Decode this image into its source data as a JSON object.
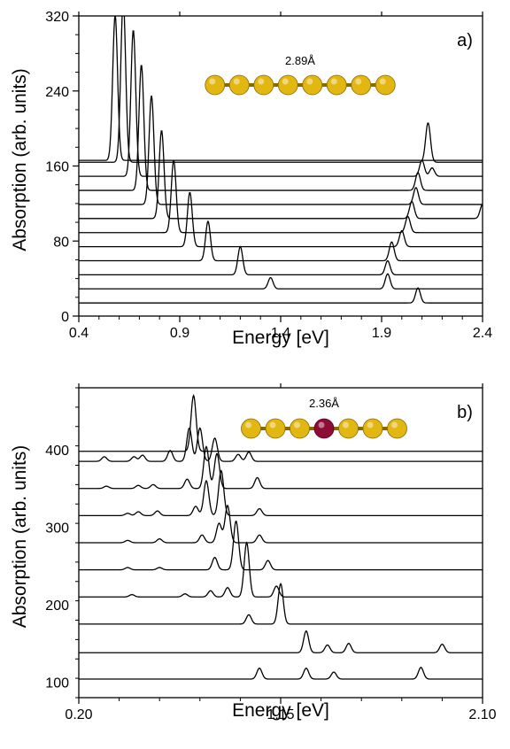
{
  "colors": {
    "gold": "#e3b711",
    "gold_dark": "#8a6a00",
    "dopant": "#8e0b35",
    "line": "#000000"
  },
  "chart_data": [
    {
      "type": "line",
      "panel_label": "a)",
      "annotation": "2.89Å",
      "xlabel": "Energy [eV]",
      "ylabel": "Absorption (arb. units)",
      "xlim": [
        0.4,
        2.4
      ],
      "ylim": [
        0,
        320
      ],
      "xticks": [
        0.4,
        0.9,
        1.4,
        1.9,
        2.4
      ],
      "yticks": [
        0,
        80,
        160,
        240,
        320
      ],
      "x_tick_labels": [
        "0.4",
        "0.9",
        "1.4",
        "1.9",
        "2.4"
      ],
      "y_tick_labels": [
        "0",
        "80",
        "160",
        "240",
        "320"
      ],
      "atoms": [
        {
          "type": "Au"
        },
        {
          "type": "Au"
        },
        {
          "type": "Au"
        },
        {
          "type": "Au"
        },
        {
          "type": "Au"
        },
        {
          "type": "Au"
        },
        {
          "type": "Au"
        },
        {
          "type": "Au"
        }
      ],
      "peak_width": 0.012,
      "series": [
        {
          "baseline": 14,
          "peaks": [
            [
              2.08,
              16
            ]
          ]
        },
        {
          "baseline": 29,
          "peaks": [
            [
              1.35,
              12
            ],
            [
              1.93,
              16
            ]
          ]
        },
        {
          "baseline": 44,
          "peaks": [
            [
              1.2,
              30
            ],
            [
              1.93,
              15
            ]
          ]
        },
        {
          "baseline": 59,
          "peaks": [
            [
              1.04,
              42
            ],
            [
              1.95,
              20
            ]
          ]
        },
        {
          "baseline": 74,
          "peaks": [
            [
              0.95,
              58
            ],
            [
              2.0,
              17
            ]
          ]
        },
        {
          "baseline": 89,
          "peaks": [
            [
              0.87,
              77
            ],
            [
              2.03,
              17
            ]
          ]
        },
        {
          "baseline": 104,
          "peaks": [
            [
              0.81,
              94
            ],
            [
              2.05,
              18
            ],
            [
              2.4,
              15
            ]
          ]
        },
        {
          "baseline": 119,
          "peaks": [
            [
              0.76,
              116
            ],
            [
              2.07,
              18
            ]
          ]
        },
        {
          "baseline": 134,
          "peaks": [
            [
              0.71,
              134
            ],
            [
              2.08,
              19
            ]
          ]
        },
        {
          "baseline": 149,
          "peaks": [
            [
              0.67,
              156
            ],
            [
              2.1,
              17
            ],
            [
              2.15,
              9
            ]
          ]
        },
        {
          "baseline": 164,
          "peaks": [
            [
              0.62,
              173
            ],
            [
              2.13,
              42
            ]
          ]
        },
        {
          "baseline": 166,
          "peaks": [
            [
              0.58,
              155
            ]
          ]
        }
      ]
    },
    {
      "type": "line",
      "panel_label": "b)",
      "annotation": "2.36Å",
      "xlabel": "Energy [eV]",
      "ylabel": "Absorption (arb. units)",
      "xlim": [
        0.2,
        2.1
      ],
      "ylim": [
        80,
        480
      ],
      "xticks": [
        0.2,
        1.15,
        2.1
      ],
      "yticks": [
        100,
        200,
        300,
        400
      ],
      "x_tick_labels": [
        "0.20",
        "1.15",
        "2.10"
      ],
      "y_tick_labels": [
        "100",
        "200",
        "300",
        "400"
      ],
      "atoms": [
        {
          "type": "Au"
        },
        {
          "type": "Au"
        },
        {
          "type": "Au"
        },
        {
          "type": "dopant"
        },
        {
          "type": "Au"
        },
        {
          "type": "Au"
        },
        {
          "type": "Au"
        }
      ],
      "peak_width": 0.012,
      "series": [
        {
          "baseline": 104,
          "peaks": [
            [
              1.05,
              14
            ],
            [
              1.27,
              14
            ],
            [
              1.4,
              9
            ],
            [
              1.81,
              15
            ]
          ]
        },
        {
          "baseline": 138,
          "peaks": [
            [
              1.27,
              28
            ],
            [
              1.37,
              10
            ],
            [
              1.47,
              12
            ],
            [
              1.91,
              11
            ]
          ]
        },
        {
          "baseline": 175,
          "peaks": [
            [
              1.0,
              12
            ],
            [
              1.15,
              52
            ]
          ]
        },
        {
          "baseline": 210,
          "peaks": [
            [
              0.45,
              3
            ],
            [
              0.7,
              4
            ],
            [
              0.82,
              8
            ],
            [
              0.9,
              12
            ],
            [
              0.99,
              70
            ],
            [
              1.13,
              14
            ]
          ]
        },
        {
          "baseline": 245,
          "peaks": [
            [
              0.43,
              3
            ],
            [
              0.58,
              3
            ],
            [
              0.84,
              16
            ],
            [
              0.94,
              63
            ],
            [
              1.09,
              12
            ]
          ]
        },
        {
          "baseline": 280,
          "peaks": [
            [
              0.43,
              3
            ],
            [
              0.58,
              5
            ],
            [
              0.78,
              10
            ],
            [
              0.86,
              25
            ],
            [
              0.9,
              48
            ],
            [
              1.05,
              10
            ]
          ]
        },
        {
          "baseline": 315,
          "peaks": [
            [
              0.43,
              3
            ],
            [
              0.48,
              5
            ],
            [
              0.57,
              6
            ],
            [
              0.75,
              12
            ],
            [
              0.8,
              45
            ],
            [
              0.87,
              58
            ],
            [
              1.05,
              9
            ]
          ]
        },
        {
          "baseline": 350,
          "peaks": [
            [
              0.33,
              3
            ],
            [
              0.48,
              4
            ],
            [
              0.55,
              5
            ],
            [
              0.71,
              12
            ],
            [
              0.8,
              54
            ],
            [
              0.85,
              45
            ],
            [
              1.04,
              14
            ]
          ]
        },
        {
          "baseline": 385,
          "peaks": [
            [
              0.32,
              6
            ],
            [
              0.46,
              6
            ],
            [
              0.5,
              8
            ],
            [
              0.63,
              14
            ],
            [
              0.72,
              43
            ],
            [
              0.77,
              43
            ],
            [
              0.84,
              30
            ],
            [
              0.95,
              9
            ],
            [
              1.0,
              12
            ]
          ]
        },
        {
          "baseline": 398,
          "peaks": [
            [
              0.74,
              72
            ]
          ]
        }
      ]
    }
  ]
}
